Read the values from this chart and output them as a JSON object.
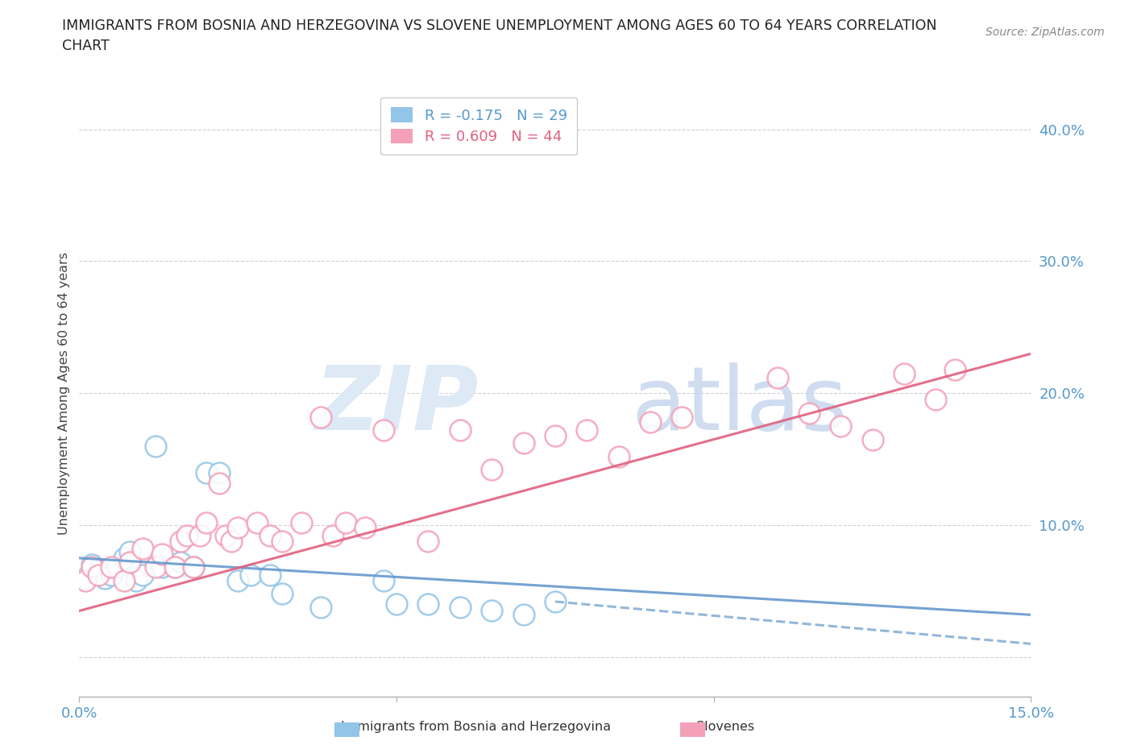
{
  "title_line1": "IMMIGRANTS FROM BOSNIA AND HERZEGOVINA VS SLOVENE UNEMPLOYMENT AMONG AGES 60 TO 64 YEARS CORRELATION",
  "title_line2": "CHART",
  "source": "Source: ZipAtlas.com",
  "ylabel": "Unemployment Among Ages 60 to 64 years",
  "xlim": [
    0.0,
    0.15
  ],
  "ylim": [
    -0.03,
    0.43
  ],
  "yticks": [
    0.0,
    0.1,
    0.2,
    0.3,
    0.4
  ],
  "ytick_labels": [
    "",
    "10.0%",
    "20.0%",
    "30.0%",
    "40.0%"
  ],
  "xticks": [
    0.0,
    0.05,
    0.1,
    0.15
  ],
  "xtick_labels": [
    "0.0%",
    "",
    "",
    "15.0%"
  ],
  "legend_R1": "R = -0.175",
  "legend_N1": "N = 29",
  "legend_R2": "R = 0.609",
  "legend_N2": "N = 44",
  "color_blue": "#92C5E8",
  "color_pink": "#F4A0B8",
  "color_blue_line": "#6699CC",
  "color_pink_line": "#E06080",
  "color_axis": "#B0B0B0",
  "color_grid": "#CCCCCC",
  "color_tick_label": "#5599CC",
  "blue_scatter_x": [
    0.001,
    0.002,
    0.003,
    0.004,
    0.005,
    0.006,
    0.007,
    0.008,
    0.009,
    0.01,
    0.012,
    0.013,
    0.015,
    0.016,
    0.018,
    0.02,
    0.022,
    0.025,
    0.027,
    0.03,
    0.032,
    0.038,
    0.048,
    0.05,
    0.055,
    0.06,
    0.065,
    0.07,
    0.075
  ],
  "blue_scatter_y": [
    0.06,
    0.07,
    0.065,
    0.06,
    0.062,
    0.068,
    0.075,
    0.08,
    0.058,
    0.062,
    0.16,
    0.068,
    0.068,
    0.072,
    0.068,
    0.14,
    0.14,
    0.058,
    0.062,
    0.062,
    0.048,
    0.038,
    0.058,
    0.04,
    0.04,
    0.038,
    0.035,
    0.032,
    0.042
  ],
  "pink_scatter_x": [
    0.001,
    0.002,
    0.003,
    0.005,
    0.007,
    0.008,
    0.01,
    0.012,
    0.013,
    0.015,
    0.016,
    0.017,
    0.018,
    0.019,
    0.02,
    0.022,
    0.023,
    0.024,
    0.025,
    0.028,
    0.03,
    0.032,
    0.035,
    0.038,
    0.04,
    0.042,
    0.045,
    0.048,
    0.055,
    0.06,
    0.065,
    0.07,
    0.075,
    0.08,
    0.085,
    0.09,
    0.095,
    0.11,
    0.115,
    0.12,
    0.125,
    0.13,
    0.135,
    0.138
  ],
  "pink_scatter_y": [
    0.058,
    0.068,
    0.062,
    0.068,
    0.058,
    0.072,
    0.082,
    0.068,
    0.078,
    0.068,
    0.088,
    0.092,
    0.068,
    0.092,
    0.102,
    0.132,
    0.092,
    0.088,
    0.098,
    0.102,
    0.092,
    0.088,
    0.102,
    0.182,
    0.092,
    0.102,
    0.098,
    0.172,
    0.088,
    0.172,
    0.142,
    0.162,
    0.168,
    0.172,
    0.152,
    0.178,
    0.182,
    0.212,
    0.185,
    0.175,
    0.165,
    0.215,
    0.195,
    0.218
  ],
  "blue_trend_x": [
    0.0,
    0.15
  ],
  "blue_trend_y": [
    0.075,
    0.032
  ],
  "pink_trend_x": [
    0.0,
    0.15
  ],
  "pink_trend_y": [
    0.035,
    0.23
  ],
  "figsize": [
    14.06,
    9.3
  ],
  "dpi": 100
}
